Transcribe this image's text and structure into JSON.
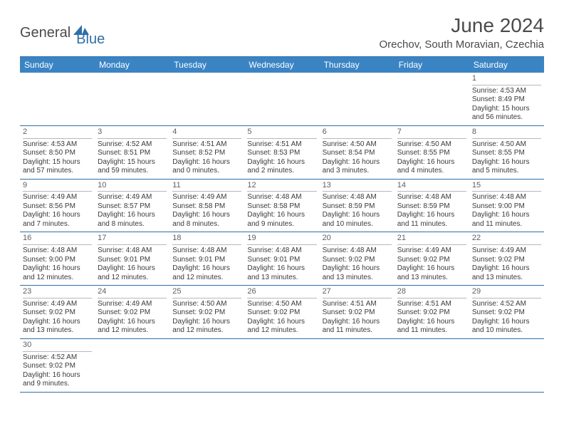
{
  "logo": {
    "text1": "General",
    "text2": "Blue"
  },
  "title": "June 2024",
  "location": "Orechov, South Moravian, Czechia",
  "colors": {
    "header_bg": "#3b84c4",
    "border": "#2f6fa7",
    "text": "#4a4a4a",
    "daynum_border": "#b8b8b8"
  },
  "dayHeaders": [
    "Sunday",
    "Monday",
    "Tuesday",
    "Wednesday",
    "Thursday",
    "Friday",
    "Saturday"
  ],
  "leadingEmpty": 6,
  "trailingEmpty": 6,
  "days": [
    {
      "n": 1,
      "sr": "4:53 AM",
      "ss": "8:49 PM",
      "dh": 15,
      "dm": 56
    },
    {
      "n": 2,
      "sr": "4:53 AM",
      "ss": "8:50 PM",
      "dh": 15,
      "dm": 57
    },
    {
      "n": 3,
      "sr": "4:52 AM",
      "ss": "8:51 PM",
      "dh": 15,
      "dm": 59
    },
    {
      "n": 4,
      "sr": "4:51 AM",
      "ss": "8:52 PM",
      "dh": 16,
      "dm": 0
    },
    {
      "n": 5,
      "sr": "4:51 AM",
      "ss": "8:53 PM",
      "dh": 16,
      "dm": 2
    },
    {
      "n": 6,
      "sr": "4:50 AM",
      "ss": "8:54 PM",
      "dh": 16,
      "dm": 3
    },
    {
      "n": 7,
      "sr": "4:50 AM",
      "ss": "8:55 PM",
      "dh": 16,
      "dm": 4
    },
    {
      "n": 8,
      "sr": "4:50 AM",
      "ss": "8:55 PM",
      "dh": 16,
      "dm": 5
    },
    {
      "n": 9,
      "sr": "4:49 AM",
      "ss": "8:56 PM",
      "dh": 16,
      "dm": 7
    },
    {
      "n": 10,
      "sr": "4:49 AM",
      "ss": "8:57 PM",
      "dh": 16,
      "dm": 8
    },
    {
      "n": 11,
      "sr": "4:49 AM",
      "ss": "8:58 PM",
      "dh": 16,
      "dm": 8
    },
    {
      "n": 12,
      "sr": "4:48 AM",
      "ss": "8:58 PM",
      "dh": 16,
      "dm": 9
    },
    {
      "n": 13,
      "sr": "4:48 AM",
      "ss": "8:59 PM",
      "dh": 16,
      "dm": 10
    },
    {
      "n": 14,
      "sr": "4:48 AM",
      "ss": "8:59 PM",
      "dh": 16,
      "dm": 11
    },
    {
      "n": 15,
      "sr": "4:48 AM",
      "ss": "9:00 PM",
      "dh": 16,
      "dm": 11
    },
    {
      "n": 16,
      "sr": "4:48 AM",
      "ss": "9:00 PM",
      "dh": 16,
      "dm": 12
    },
    {
      "n": 17,
      "sr": "4:48 AM",
      "ss": "9:01 PM",
      "dh": 16,
      "dm": 12
    },
    {
      "n": 18,
      "sr": "4:48 AM",
      "ss": "9:01 PM",
      "dh": 16,
      "dm": 12
    },
    {
      "n": 19,
      "sr": "4:48 AM",
      "ss": "9:01 PM",
      "dh": 16,
      "dm": 13
    },
    {
      "n": 20,
      "sr": "4:48 AM",
      "ss": "9:02 PM",
      "dh": 16,
      "dm": 13
    },
    {
      "n": 21,
      "sr": "4:49 AM",
      "ss": "9:02 PM",
      "dh": 16,
      "dm": 13
    },
    {
      "n": 22,
      "sr": "4:49 AM",
      "ss": "9:02 PM",
      "dh": 16,
      "dm": 13
    },
    {
      "n": 23,
      "sr": "4:49 AM",
      "ss": "9:02 PM",
      "dh": 16,
      "dm": 13
    },
    {
      "n": 24,
      "sr": "4:49 AM",
      "ss": "9:02 PM",
      "dh": 16,
      "dm": 12
    },
    {
      "n": 25,
      "sr": "4:50 AM",
      "ss": "9:02 PM",
      "dh": 16,
      "dm": 12
    },
    {
      "n": 26,
      "sr": "4:50 AM",
      "ss": "9:02 PM",
      "dh": 16,
      "dm": 12
    },
    {
      "n": 27,
      "sr": "4:51 AM",
      "ss": "9:02 PM",
      "dh": 16,
      "dm": 11
    },
    {
      "n": 28,
      "sr": "4:51 AM",
      "ss": "9:02 PM",
      "dh": 16,
      "dm": 11
    },
    {
      "n": 29,
      "sr": "4:52 AM",
      "ss": "9:02 PM",
      "dh": 16,
      "dm": 10
    },
    {
      "n": 30,
      "sr": "4:52 AM",
      "ss": "9:02 PM",
      "dh": 16,
      "dm": 9
    }
  ],
  "labels": {
    "sunrise": "Sunrise:",
    "sunset": "Sunset:",
    "daylight": "Daylight:",
    "hours": "hours",
    "and": "and",
    "minutes": "minutes."
  }
}
